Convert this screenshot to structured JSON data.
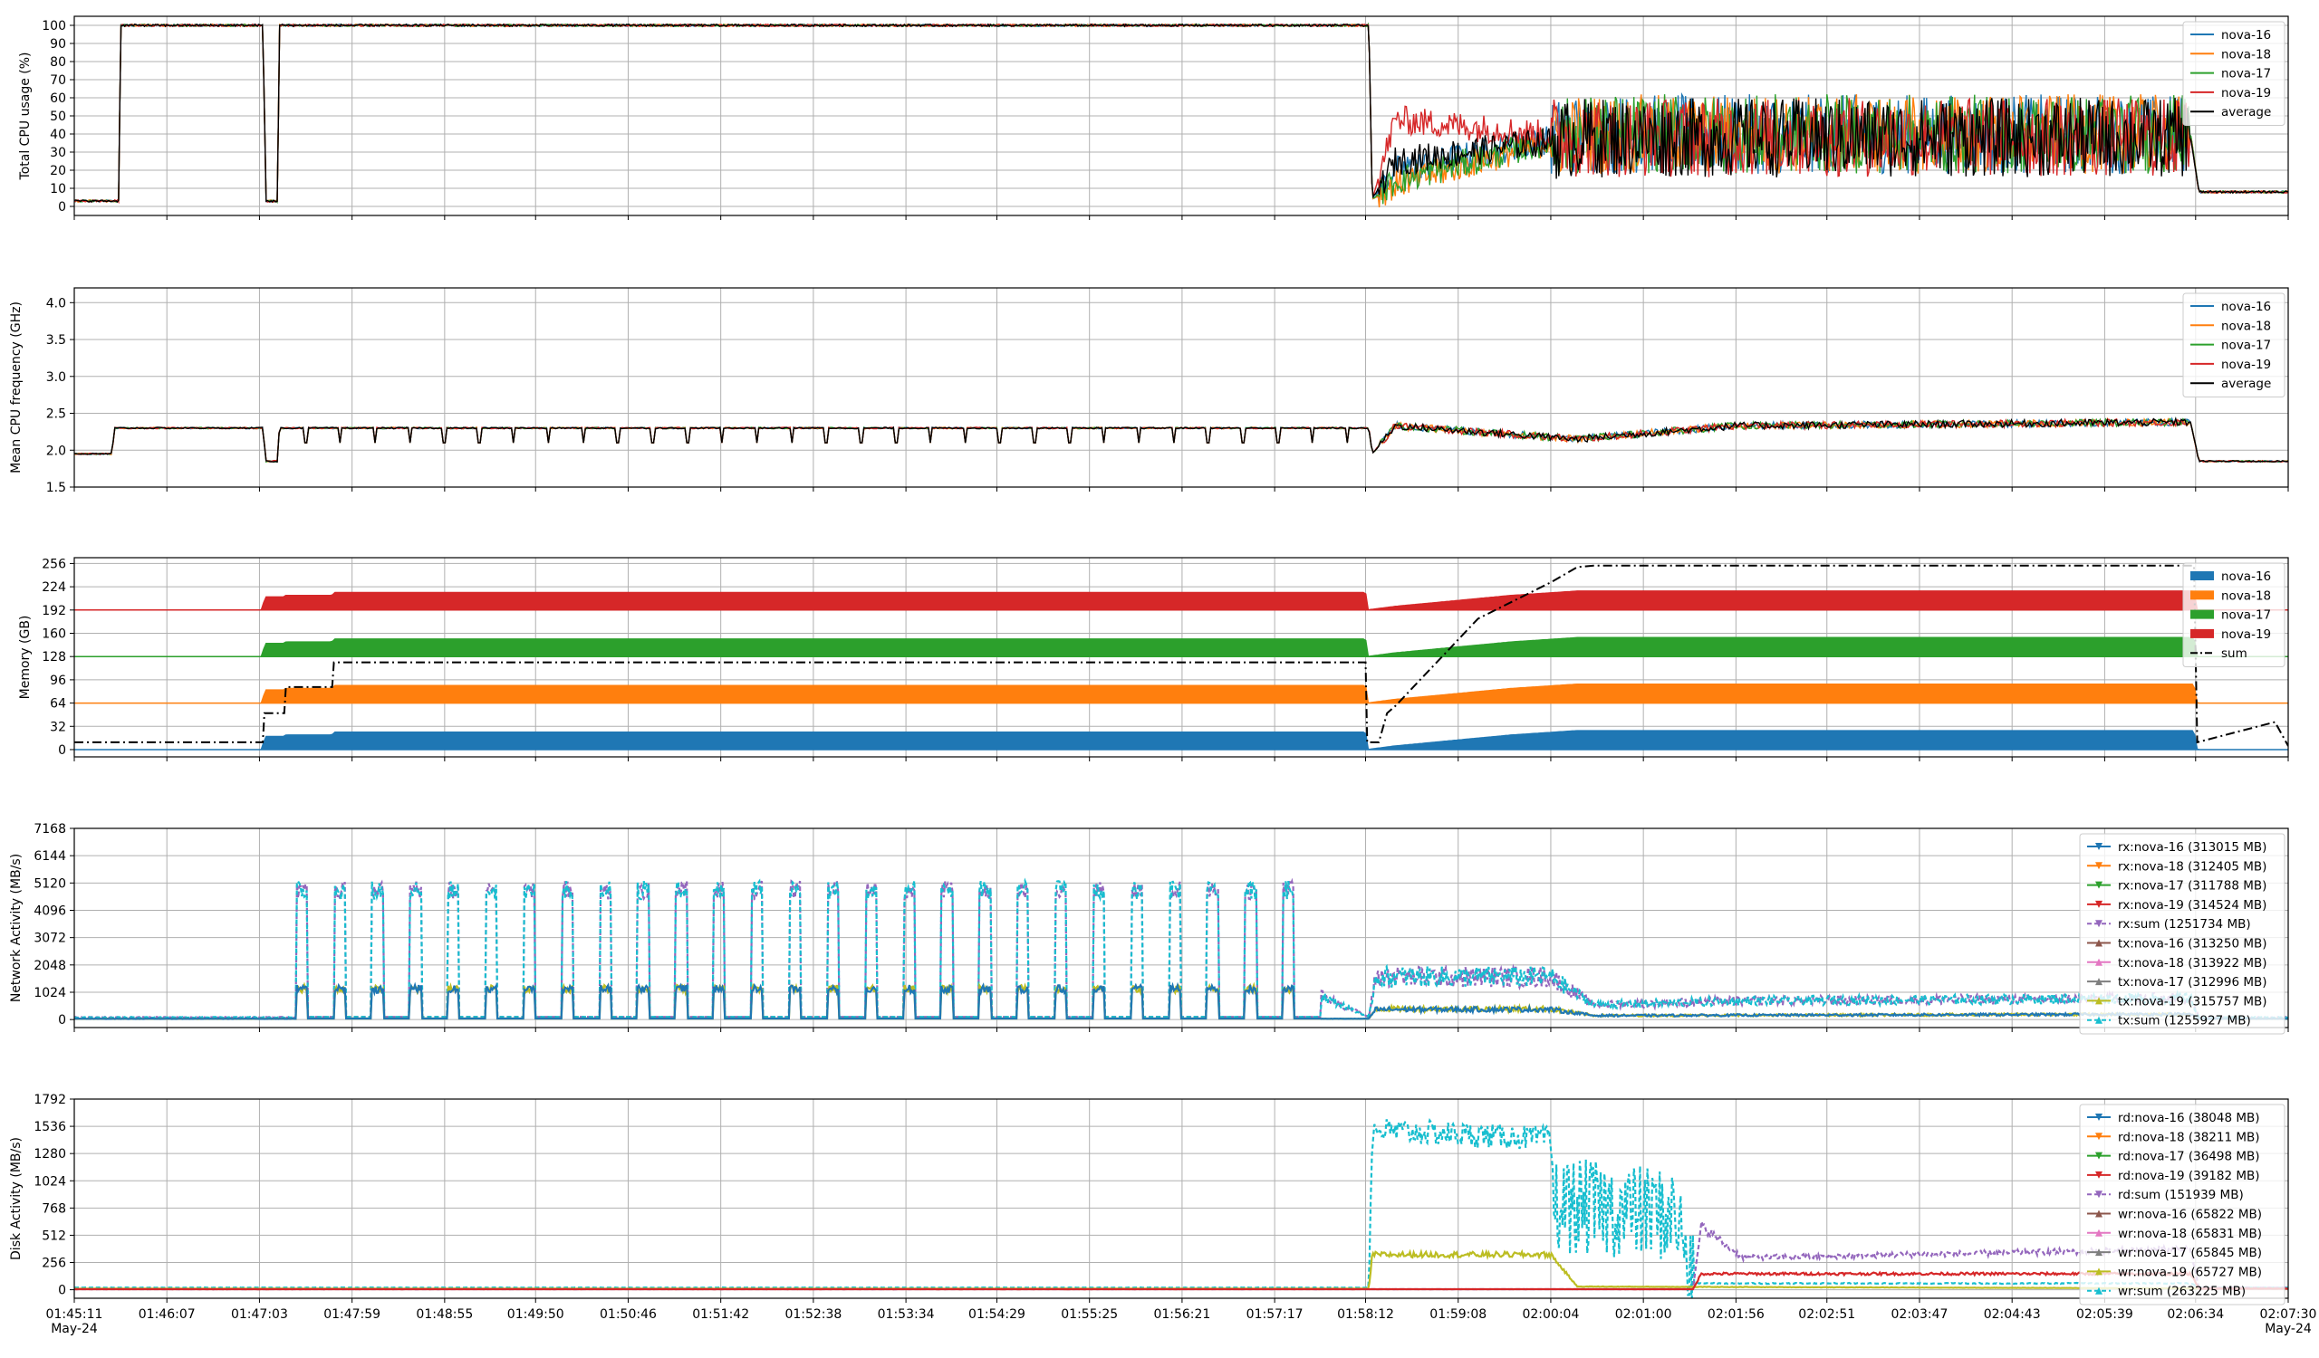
{
  "colors": {
    "nova-16": "#1f77b4",
    "nova-18": "#ff7f0e",
    "nova-17": "#2ca02c",
    "nova-19": "#d62728",
    "average": "#000000",
    "sum": "#000000",
    "rx-sum": "#9467bd",
    "tx-nova-16": "#8c564b",
    "tx-nova-18": "#e377c2",
    "tx-nova-17": "#7f7f7f",
    "tx-nova-19": "#bcbd22",
    "tx-sum": "#17becf"
  },
  "x_axis": {
    "ticks": [
      "01:45:11",
      "01:46:07",
      "01:47:03",
      "01:47:59",
      "01:48:55",
      "01:49:50",
      "01:50:46",
      "01:51:42",
      "01:52:38",
      "01:53:34",
      "01:54:29",
      "01:55:25",
      "01:56:21",
      "01:57:17",
      "01:58:12",
      "01:59:08",
      "02:00:04",
      "02:01:00",
      "02:01:56",
      "02:02:51",
      "02:03:47",
      "02:04:43",
      "02:05:39",
      "02:06:34",
      "02:07:30"
    ],
    "date_left": "May-24",
    "date_right": "May-24",
    "grid": true
  },
  "chart_data": [
    {
      "id": "cpu",
      "type": "line",
      "ylabel": "Total CPU usage (%)",
      "yticks": [
        0,
        10,
        20,
        30,
        40,
        50,
        60,
        70,
        80,
        90,
        100
      ],
      "ylim": [
        -5,
        105
      ],
      "legend": [
        "nova-16",
        "nova-18",
        "nova-17",
        "nova-19",
        "average"
      ],
      "series": [
        {
          "name": "nova-16",
          "x": [
            "01:45:11",
            "01:45:38",
            "01:45:39",
            "01:47:05",
            "01:47:07",
            "01:47:14",
            "01:47:15",
            "01:58:14",
            "01:58:16",
            "01:58:30",
            "02:00:20",
            "02:06:31",
            "02:06:36",
            "02:07:30"
          ],
          "values": [
            3,
            3,
            100,
            100,
            3,
            3,
            100,
            100,
            4,
            20,
            40,
            40,
            8,
            8
          ]
        },
        {
          "name": "nova-18",
          "x": [
            "01:45:11",
            "01:45:38",
            "01:45:39",
            "01:47:05",
            "01:47:07",
            "01:47:14",
            "01:47:15",
            "01:58:14",
            "01:58:16",
            "01:58:30",
            "02:00:20",
            "02:06:31",
            "02:06:36",
            "02:07:30"
          ],
          "values": [
            3,
            3,
            100,
            100,
            3,
            3,
            100,
            100,
            4,
            12,
            40,
            40,
            8,
            8
          ]
        },
        {
          "name": "nova-17",
          "x": [
            "01:45:11",
            "01:45:38",
            "01:45:39",
            "01:47:05",
            "01:47:07",
            "01:47:14",
            "01:47:15",
            "01:58:14",
            "01:58:16",
            "01:58:30",
            "02:00:20",
            "02:06:31",
            "02:06:36",
            "02:07:30"
          ],
          "values": [
            3,
            3,
            100,
            100,
            3,
            3,
            100,
            100,
            4,
            14,
            40,
            40,
            8,
            8
          ]
        },
        {
          "name": "nova-19",
          "x": [
            "01:45:11",
            "01:45:38",
            "01:45:39",
            "01:47:05",
            "01:47:07",
            "01:47:14",
            "01:47:15",
            "01:58:14",
            "01:58:16",
            "01:58:30",
            "02:00:20",
            "02:06:31",
            "02:06:36",
            "02:07:30"
          ],
          "values": [
            3,
            3,
            100,
            100,
            3,
            3,
            100,
            100,
            4,
            48,
            38,
            38,
            8,
            8
          ]
        },
        {
          "name": "average",
          "x": [
            "01:45:11",
            "01:45:38",
            "01:45:39",
            "01:47:05",
            "01:47:07",
            "01:47:14",
            "01:47:15",
            "01:58:14",
            "01:58:16",
            "01:58:30",
            "02:00:20",
            "02:06:31",
            "02:06:36",
            "02:07:30"
          ],
          "values": [
            3,
            3,
            100,
            100,
            3,
            3,
            100,
            100,
            4,
            25,
            38,
            38,
            8,
            8
          ]
        }
      ]
    },
    {
      "id": "freq",
      "type": "line",
      "ylabel": "Mean CPU frequency (GHz)",
      "yticks": [
        1.5,
        2.0,
        2.5,
        3.0,
        3.5,
        4.0
      ],
      "ylim": [
        1.5,
        4.2
      ],
      "legend": [
        "nova-16",
        "nova-18",
        "nova-17",
        "nova-19",
        "average"
      ],
      "series": [
        {
          "name": "nova-16",
          "x": [
            "01:45:11",
            "01:45:34",
            "01:45:35",
            "01:47:05",
            "01:47:07",
            "01:47:14",
            "01:47:15",
            "01:58:14",
            "01:58:16",
            "01:58:30",
            "02:00:20",
            "02:01:55",
            "02:06:31",
            "02:06:36",
            "02:07:30"
          ],
          "values": [
            1.95,
            1.95,
            2.3,
            2.3,
            1.85,
            1.85,
            2.3,
            2.3,
            1.95,
            2.33,
            2.15,
            2.33,
            2.38,
            1.85,
            1.85
          ]
        },
        {
          "name": "nova-18",
          "x": [
            "01:45:11",
            "01:45:34",
            "01:45:35",
            "01:47:05",
            "01:47:07",
            "01:47:14",
            "01:47:15",
            "01:58:14",
            "01:58:16",
            "01:58:30",
            "02:00:20",
            "02:01:55",
            "02:06:31",
            "02:06:36",
            "02:07:30"
          ],
          "values": [
            1.95,
            1.95,
            2.3,
            2.3,
            1.85,
            1.85,
            2.3,
            2.3,
            1.95,
            2.33,
            2.15,
            2.33,
            2.38,
            1.85,
            1.85
          ]
        },
        {
          "name": "nova-17",
          "x": [
            "01:45:11",
            "01:45:34",
            "01:45:35",
            "01:47:05",
            "01:47:07",
            "01:47:14",
            "01:47:15",
            "01:58:14",
            "01:58:16",
            "01:58:30",
            "02:00:20",
            "02:01:55",
            "02:06:31",
            "02:06:36",
            "02:07:30"
          ],
          "values": [
            1.95,
            1.95,
            2.3,
            2.3,
            1.85,
            1.85,
            2.3,
            2.3,
            1.95,
            2.33,
            2.15,
            2.33,
            2.38,
            1.85,
            1.85
          ]
        },
        {
          "name": "nova-19",
          "x": [
            "01:45:11",
            "01:45:34",
            "01:45:35",
            "01:47:05",
            "01:47:07",
            "01:47:14",
            "01:47:15",
            "01:58:14",
            "01:58:16",
            "01:58:30",
            "02:00:20",
            "02:01:55",
            "02:06:31",
            "02:06:36",
            "02:07:30"
          ],
          "values": [
            1.95,
            1.95,
            2.3,
            2.3,
            1.85,
            1.85,
            2.3,
            2.3,
            1.95,
            2.33,
            2.15,
            2.33,
            2.38,
            1.85,
            1.85
          ]
        },
        {
          "name": "average",
          "x": [
            "01:45:11",
            "01:45:34",
            "01:45:35",
            "01:47:05",
            "01:47:07",
            "01:47:14",
            "01:47:15",
            "01:58:14",
            "01:58:16",
            "01:58:30",
            "02:00:20",
            "02:01:55",
            "02:06:31",
            "02:06:36",
            "02:07:30"
          ],
          "values": [
            1.95,
            1.95,
            2.3,
            2.3,
            1.85,
            1.85,
            2.3,
            2.3,
            1.95,
            2.33,
            2.15,
            2.33,
            2.38,
            1.85,
            1.85
          ]
        }
      ]
    },
    {
      "id": "mem",
      "type": "area",
      "stacked": true,
      "ylabel": "Memory (GB)",
      "yticks": [
        0,
        32,
        64,
        96,
        128,
        160,
        192,
        224,
        256
      ],
      "ylim": [
        -10,
        264
      ],
      "legend": [
        "nova-16",
        "nova-18",
        "nova-17",
        "nova-19",
        "sum"
      ],
      "series": [
        {
          "name": "nova-16",
          "x": [
            "01:45:11",
            "01:47:05",
            "01:47:06",
            "01:47:18",
            "01:47:19",
            "01:47:47",
            "01:47:48",
            "01:58:12",
            "01:58:13",
            "01:58:30",
            "01:59:40",
            "02:00:20",
            "02:06:33",
            "02:06:35",
            "02:07:30"
          ],
          "values": [
            0,
            0,
            18,
            18,
            20,
            20,
            24,
            24,
            0,
            5,
            20,
            26,
            26,
            0,
            0
          ]
        },
        {
          "name": "nova-18",
          "x": [
            "01:45:11",
            "01:47:05",
            "01:47:06",
            "01:47:18",
            "01:47:19",
            "01:47:47",
            "01:47:48",
            "01:58:12",
            "01:58:13",
            "01:58:30",
            "01:59:40",
            "02:00:20",
            "02:06:33",
            "02:06:35",
            "02:07:30"
          ],
          "values": [
            0,
            0,
            18,
            18,
            20,
            20,
            24,
            24,
            0,
            5,
            20,
            26,
            26,
            0,
            0
          ]
        },
        {
          "name": "nova-17",
          "x": [
            "01:45:11",
            "01:47:05",
            "01:47:06",
            "01:47:18",
            "01:47:19",
            "01:47:47",
            "01:47:48",
            "01:58:12",
            "01:58:13",
            "01:58:30",
            "01:59:40",
            "02:00:20",
            "02:06:33",
            "02:06:35",
            "02:07:30"
          ],
          "values": [
            0,
            0,
            18,
            18,
            20,
            20,
            24,
            24,
            0,
            5,
            20,
            26,
            26,
            0,
            0
          ]
        },
        {
          "name": "nova-19",
          "x": [
            "01:45:11",
            "01:47:05",
            "01:47:06",
            "01:47:18",
            "01:47:19",
            "01:47:47",
            "01:47:48",
            "01:58:12",
            "01:58:13",
            "01:58:30",
            "01:59:40",
            "02:00:20",
            "02:06:33",
            "02:06:35",
            "02:07:30"
          ],
          "values": [
            0,
            0,
            18,
            18,
            20,
            20,
            24,
            24,
            0,
            5,
            20,
            26,
            26,
            0,
            0
          ]
        },
        {
          "name": "sum",
          "x": [
            "01:45:11",
            "01:47:05",
            "01:47:06",
            "01:47:18",
            "01:47:19",
            "01:47:47",
            "01:47:48",
            "01:58:12",
            "01:58:13",
            "01:58:20",
            "01:58:25",
            "01:58:30",
            "01:59:20",
            "02:00:04",
            "02:00:20",
            "02:00:30",
            "02:06:33",
            "02:06:35",
            "02:07:22",
            "02:07:30"
          ],
          "values": [
            10,
            10,
            50,
            50,
            86,
            86,
            120,
            120,
            10,
            10,
            50,
            60,
            180,
            230,
            251,
            253,
            253,
            10,
            38,
            5
          ]
        }
      ],
      "baselines": {
        "nova-16": 0,
        "nova-18": 64,
        "nova-17": 128,
        "nova-19": 192
      }
    },
    {
      "id": "net",
      "type": "line",
      "ylabel": "Network Activity (MB/s)",
      "yticks": [
        0,
        1024,
        2048,
        3072,
        4096,
        5120,
        6144,
        7168
      ],
      "ylim": [
        -300,
        7168
      ],
      "legend": [
        "rx:nova-16 (313015 MB)",
        "rx:nova-18 (312405 MB)",
        "rx:nova-17 (311788 MB)",
        "rx:nova-19 (314524 MB)",
        "rx:sum (1251734 MB)",
        "tx:nova-16 (313250 MB)",
        "tx:nova-18 (313922 MB)",
        "tx:nova-17 (312996 MB)",
        "tx:nova-19 (315757 MB)",
        "tx:sum (1255927 MB)"
      ],
      "series": [
        {
          "name": "rx:sum (1251734 MB)",
          "x": [
            "01:45:11",
            "01:47:25",
            "01:47:26",
            "01:57:45",
            "01:58:14",
            "01:58:18",
            "02:00:04",
            "02:00:30",
            "02:02:00",
            "02:06:31",
            "02:06:36",
            "02:07:30"
          ],
          "values": [
            80,
            80,
            900,
            900,
            80,
            1600,
            1600,
            550,
            700,
            800,
            80,
            80
          ]
        },
        {
          "name": "tx:sum (1255927 MB)",
          "x": [
            "01:45:11",
            "01:47:25",
            "01:47:26",
            "01:57:45",
            "01:58:14",
            "01:58:18",
            "02:00:04",
            "02:00:30",
            "02:02:00",
            "02:06:31",
            "02:06:36",
            "02:07:30"
          ],
          "values": [
            80,
            80,
            900,
            900,
            80,
            1600,
            1600,
            550,
            700,
            800,
            80,
            80
          ]
        },
        {
          "name": "tx:nova-19 (315757 MB)",
          "x": [
            "01:45:11",
            "01:58:14",
            "01:58:18",
            "02:00:04",
            "02:00:30",
            "02:06:31",
            "02:06:36",
            "02:07:30"
          ],
          "values": [
            30,
            30,
            400,
            400,
            150,
            200,
            30,
            30
          ]
        },
        {
          "name": "rx:nova-16 (313015 MB)",
          "x": [
            "01:45:11",
            "01:58:14",
            "01:58:18",
            "02:00:04",
            "02:00:30",
            "02:06:31",
            "02:06:36",
            "02:07:30"
          ],
          "values": [
            30,
            30,
            380,
            380,
            150,
            200,
            30,
            30
          ]
        }
      ]
    },
    {
      "id": "disk",
      "type": "line",
      "ylabel": "Disk Activity (MB/s)",
      "yticks": [
        0,
        256,
        512,
        768,
        1024,
        1280,
        1536,
        1792
      ],
      "ylim": [
        -80,
        1792
      ],
      "legend": [
        "rd:nova-16 (38048 MB)",
        "rd:nova-18 (38211 MB)",
        "rd:nova-17 (36498 MB)",
        "rd:nova-19 (39182 MB)",
        "rd:sum (151939 MB)",
        "wr:nova-16 (65822 MB)",
        "wr:nova-18 (65831 MB)",
        "wr:nova-17 (65845 MB)",
        "wr:nova-19 (65727 MB)",
        "wr:sum (263225 MB)"
      ],
      "series": [
        {
          "name": "wr:sum (263225 MB)",
          "x": [
            "01:45:11",
            "01:58:14",
            "01:58:16",
            "02:00:04",
            "02:00:06",
            "02:01:20",
            "02:01:30",
            "02:06:31",
            "02:06:36",
            "02:07:30"
          ],
          "values": [
            20,
            20,
            1500,
            1420,
            800,
            700,
            60,
            60,
            20,
            20
          ]
        },
        {
          "name": "wr:nova-19 (65727 MB)",
          "x": [
            "01:45:11",
            "01:58:14",
            "01:58:16",
            "02:00:04",
            "02:00:20",
            "02:07:30"
          ],
          "values": [
            10,
            10,
            330,
            330,
            30,
            10
          ]
        },
        {
          "name": "rd:sum (151939 MB)",
          "x": [
            "01:45:11",
            "02:01:30",
            "02:01:35",
            "02:02:00",
            "02:06:31",
            "02:06:36",
            "02:07:30"
          ],
          "values": [
            5,
            5,
            600,
            300,
            380,
            20,
            20
          ]
        },
        {
          "name": "rd:nova-19 (39182 MB)",
          "x": [
            "01:45:11",
            "02:01:30",
            "02:01:35",
            "02:06:31",
            "02:06:36",
            "02:07:30"
          ],
          "values": [
            5,
            5,
            150,
            150,
            10,
            10
          ]
        }
      ]
    }
  ]
}
